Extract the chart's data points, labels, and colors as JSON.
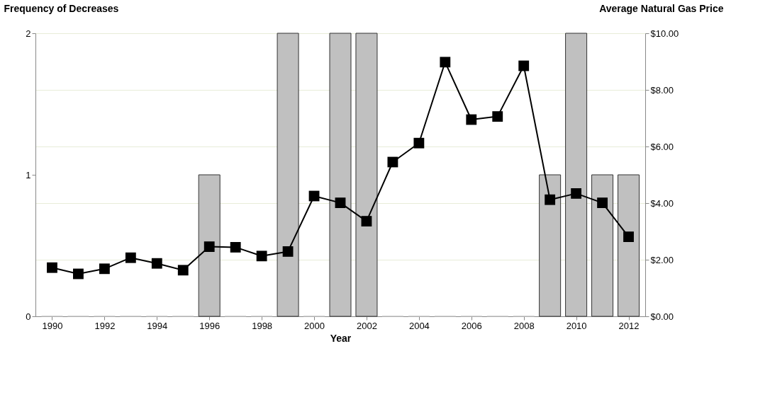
{
  "chart_data": {
    "type": "bar",
    "xlabel": "Year",
    "ylabel": "Frequency of Decreases",
    "y2label": "Average Natural Gas Price",
    "x": [
      1990,
      1991,
      1992,
      1993,
      1994,
      1995,
      1996,
      1997,
      1998,
      1999,
      2000,
      2001,
      2002,
      2003,
      2004,
      2005,
      2006,
      2007,
      2008,
      2009,
      2010,
      2011,
      2012
    ],
    "xlim": [
      1989.5,
      2012.5
    ],
    "xticks": [
      1990,
      1992,
      1994,
      1996,
      1998,
      2000,
      2002,
      2004,
      2006,
      2008,
      2010,
      2012
    ],
    "ylim": [
      0,
      2
    ],
    "yticks": [
      0,
      1,
      2
    ],
    "y2lim": [
      0,
      10
    ],
    "y2ticks": [
      {
        "value": 0,
        "label": "$0.00"
      },
      {
        "value": 2,
        "label": "$2.00"
      },
      {
        "value": 4,
        "label": "$4.00"
      },
      {
        "value": 6,
        "label": "$6.00"
      },
      {
        "value": 8,
        "label": "$8.00"
      },
      {
        "value": 10,
        "label": "$10.00"
      }
    ],
    "series": [
      {
        "color": "#c0c0c0",
        "values": [
          0,
          0,
          0,
          0,
          0,
          0,
          1,
          0,
          0,
          2,
          0,
          2,
          2,
          0,
          0,
          0,
          0,
          0,
          0,
          1,
          2,
          1,
          1
        ]
      },
      {
        "type": "line",
        "axis": "y2",
        "color": "#000000",
        "marker": "square",
        "line_style": "solid",
        "values": [
          1.72,
          1.5,
          1.68,
          2.07,
          1.87,
          1.63,
          2.46,
          2.44,
          2.13,
          2.29,
          4.25,
          4.01,
          3.36,
          5.45,
          6.12,
          8.98,
          6.95,
          7.06,
          8.85,
          4.12,
          4.34,
          4.01,
          2.81
        ]
      }
    ],
    "grid": "y"
  }
}
